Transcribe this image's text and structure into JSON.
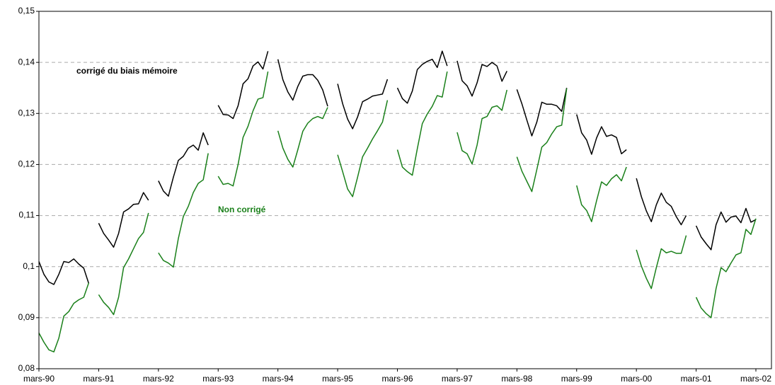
{
  "chart_data": {
    "type": "line",
    "categories": [
      "mars-90",
      null,
      null,
      null,
      null,
      null,
      null,
      null,
      null,
      null,
      null,
      null,
      "mars-91",
      null,
      null,
      null,
      null,
      null,
      null,
      null,
      null,
      null,
      null,
      null,
      "mars-92",
      null,
      null,
      null,
      null,
      null,
      null,
      null,
      null,
      null,
      null,
      null,
      "mars-93",
      null,
      null,
      null,
      null,
      null,
      null,
      null,
      null,
      null,
      null,
      null,
      "mars-94",
      null,
      null,
      null,
      null,
      null,
      null,
      null,
      null,
      null,
      null,
      null,
      "mars-95",
      null,
      null,
      null,
      null,
      null,
      null,
      null,
      null,
      null,
      null,
      null,
      "mars-96",
      null,
      null,
      null,
      null,
      null,
      null,
      null,
      null,
      null,
      null,
      null,
      "mars-97",
      null,
      null,
      null,
      null,
      null,
      null,
      null,
      null,
      null,
      null,
      null,
      "mars-98",
      null,
      null,
      null,
      null,
      null,
      null,
      null,
      null,
      null,
      null,
      null,
      "mars-99",
      null,
      null,
      null,
      null,
      null,
      null,
      null,
      null,
      null,
      null,
      null,
      "mars-00",
      null,
      null,
      null,
      null,
      null,
      null,
      null,
      null,
      null,
      null,
      null,
      "mars-01",
      null,
      null,
      null,
      null,
      null,
      null,
      null,
      null,
      null,
      null,
      null,
      "mars-02"
    ],
    "series": [
      {
        "name": "corrigé du biais mémoire",
        "color": "#000000",
        "values": [
          0.101,
          0.0985,
          0.097,
          0.0965,
          0.0985,
          0.101,
          0.1008,
          0.1015,
          0.1005,
          0.0997,
          0.0967,
          null,
          0.1085,
          0.1065,
          0.1052,
          0.1038,
          0.1065,
          0.1107,
          0.1113,
          0.1122,
          0.1123,
          0.1145,
          0.113,
          null,
          0.1168,
          0.1148,
          0.1138,
          0.1175,
          0.1208,
          0.1216,
          0.1232,
          0.1238,
          0.1228,
          0.1262,
          0.1238,
          null,
          0.1316,
          0.1298,
          0.1297,
          0.129,
          0.1315,
          0.1358,
          0.1368,
          0.1393,
          0.1401,
          0.1387,
          0.1422,
          null,
          0.1406,
          0.1366,
          0.1342,
          0.1326,
          0.1353,
          0.1373,
          0.1376,
          0.1376,
          0.1365,
          0.1346,
          0.1314,
          null,
          0.1358,
          0.1319,
          0.1289,
          0.127,
          0.1293,
          0.1323,
          0.1328,
          0.1334,
          0.1336,
          0.1338,
          0.1367,
          null,
          0.135,
          0.1329,
          0.132,
          0.1344,
          0.1386,
          0.1396,
          0.1402,
          0.1406,
          0.139,
          0.1422,
          0.1393,
          null,
          0.1403,
          0.1364,
          0.1354,
          0.1334,
          0.136,
          0.1396,
          0.1392,
          0.14,
          0.1393,
          0.1363,
          0.1383,
          null,
          0.1347,
          0.1319,
          0.1287,
          0.1256,
          0.1283,
          0.1322,
          0.1318,
          0.1318,
          0.1315,
          0.1304,
          0.135,
          null,
          0.1298,
          0.1262,
          0.1248,
          0.122,
          0.1252,
          0.1274,
          0.1255,
          0.1258,
          0.1253,
          0.1221,
          0.1229,
          null,
          0.1173,
          0.1137,
          0.1109,
          0.1088,
          0.1121,
          0.1144,
          0.1126,
          0.1118,
          0.1098,
          0.1082,
          0.11,
          null,
          0.108,
          0.1058,
          0.1045,
          0.1033,
          0.1082,
          0.1107,
          0.1087,
          0.1097,
          0.1099,
          0.1086,
          0.1114,
          0.1087,
          0.1092
        ]
      },
      {
        "name": "Non corrigé",
        "color": "#1a801a",
        "values": [
          0.087,
          0.0852,
          0.0837,
          0.0833,
          0.086,
          0.0903,
          0.0912,
          0.0928,
          0.0935,
          0.094,
          0.0968,
          null,
          0.0945,
          0.093,
          0.092,
          0.0906,
          0.094,
          0.0998,
          0.1015,
          0.1035,
          0.1055,
          0.1067,
          0.1105,
          null,
          0.1027,
          0.1012,
          0.1007,
          0.0999,
          0.1055,
          0.1098,
          0.1118,
          0.1145,
          0.1163,
          0.117,
          0.1222,
          null,
          0.1177,
          0.1161,
          0.1163,
          0.1158,
          0.12,
          0.1253,
          0.1275,
          0.1305,
          0.1328,
          0.1331,
          0.1382,
          null,
          0.1266,
          0.1232,
          0.121,
          0.1195,
          0.1229,
          0.1265,
          0.1281,
          0.129,
          0.1294,
          0.129,
          0.1312,
          null,
          0.1219,
          0.1186,
          0.1152,
          0.1137,
          0.1175,
          0.1215,
          0.1232,
          0.125,
          0.1266,
          0.1283,
          0.1326,
          null,
          0.1229,
          0.1195,
          0.1186,
          0.1179,
          0.1231,
          0.128,
          0.1299,
          0.1314,
          0.1335,
          0.1332,
          0.1382,
          null,
          0.1263,
          0.1227,
          0.1221,
          0.1201,
          0.1238,
          0.129,
          0.1294,
          0.1312,
          0.1315,
          0.1306,
          0.1346,
          null,
          0.1215,
          0.1187,
          0.1167,
          0.1147,
          0.119,
          0.1234,
          0.1243,
          0.126,
          0.1274,
          0.1277,
          0.1349,
          null,
          0.1159,
          0.1121,
          0.111,
          0.1088,
          0.1129,
          0.1166,
          0.1159,
          0.1172,
          0.118,
          0.1168,
          0.1195,
          null,
          0.1033,
          0.1001,
          0.0977,
          0.0957,
          0.0998,
          0.1035,
          0.1027,
          0.103,
          0.1026,
          0.1026,
          0.1061,
          null,
          0.094,
          0.0919,
          0.0908,
          0.09,
          0.0957,
          0.0998,
          0.099,
          0.1007,
          0.1023,
          0.1027,
          0.1073,
          0.1063,
          0.1094
        ]
      }
    ],
    "ylim": [
      0.08,
      0.15
    ],
    "yticks": [
      {
        "value": 0.08,
        "label": "0,08"
      },
      {
        "value": 0.09,
        "label": "0,09"
      },
      {
        "value": 0.1,
        "label": "0,1"
      },
      {
        "value": 0.11,
        "label": "0,11"
      },
      {
        "value": 0.12,
        "label": "0,12"
      },
      {
        "value": 0.13,
        "label": "0,13"
      },
      {
        "value": 0.14,
        "label": "0,14"
      },
      {
        "value": 0.15,
        "label": "0,15"
      }
    ],
    "grid": true
  }
}
